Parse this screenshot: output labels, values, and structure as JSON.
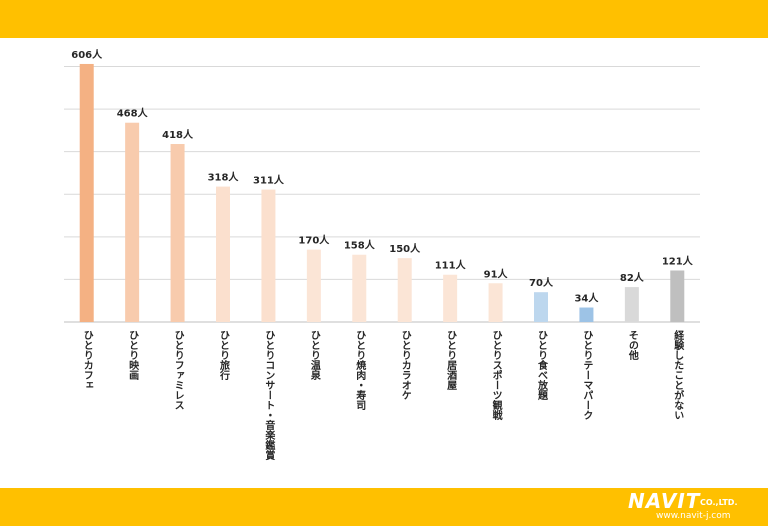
{
  "chart_data": {
    "type": "bar",
    "categories": [
      "ひとりカフェ",
      "ひとり映画",
      "ひとりファミレス",
      "ひとり旅行",
      "ひとりコンサート・音楽鑑賞",
      "ひとり温泉",
      "ひとり焼肉・寿司",
      "ひとりカラオケ",
      "ひとり居酒屋",
      "ひとりスポーツ観戦",
      "ひとり食べ放題",
      "ひとりテーマパーク",
      "その他",
      "経験したことがない"
    ],
    "values": [
      606,
      468,
      418,
      318,
      311,
      170,
      158,
      150,
      111,
      91,
      70,
      34,
      82,
      121
    ],
    "value_labels": [
      "606人",
      "468人",
      "418人",
      "318人",
      "311人",
      "170人",
      "158人",
      "150人",
      "111人",
      "91人",
      "70人",
      "34人",
      "82人",
      "121人"
    ],
    "bar_colors": [
      "#f4b183",
      "#f8cbad",
      "#f8cbad",
      "#fbe0ce",
      "#fbe0ce",
      "#fbe5d6",
      "#fbe5d6",
      "#fbe5d6",
      "#fbe5d6",
      "#fbe5d6",
      "#bdd7ee",
      "#9dc3e6",
      "#d9d9d9",
      "#bfbfbf"
    ],
    "ylim": [
      0,
      620
    ],
    "grid": true
  },
  "logo": {
    "brand": "NAVIT",
    "suffix": "CO.,LTD.",
    "url": "www.navit-j.com"
  },
  "colors": {
    "band": "#ffc000",
    "grid": "#d9d9d9",
    "text": "#262626"
  }
}
